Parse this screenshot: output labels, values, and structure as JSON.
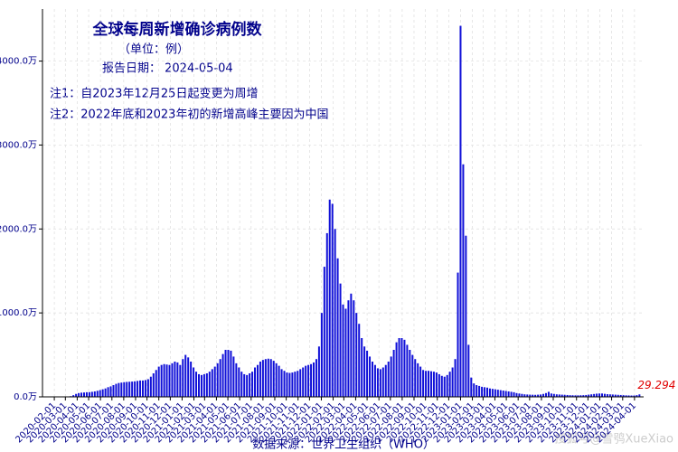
{
  "chart_data": {
    "type": "bar",
    "title": "全球每周新增确诊病例数",
    "subtitle": "（单位：例）",
    "report_date": "报告日期： 2024-05-04",
    "notes": [
      "注1：自2023年12月25日起变更为周增",
      "注2：2022年底和2023年初的新增高峰主要因为中国"
    ],
    "source": "数据来源：世界卫生组织（WHO）",
    "watermark": "搜狐号@雪鸮XueXiao",
    "color": "#1010d8",
    "grid": true,
    "x": [
      "2020-01-05",
      "2020-01-12",
      "2020-01-19",
      "2020-01-26",
      "2020-02-02",
      "2020-02-09",
      "2020-02-16",
      "2020-02-23",
      "2020-03-01",
      "2020-03-08",
      "2020-03-15",
      "2020-03-22",
      "2020-03-29",
      "2020-04-05",
      "2020-04-12",
      "2020-04-19",
      "2020-04-26",
      "2020-05-03",
      "2020-05-10",
      "2020-05-17",
      "2020-05-24",
      "2020-05-31",
      "2020-06-07",
      "2020-06-14",
      "2020-06-21",
      "2020-06-28",
      "2020-07-05",
      "2020-07-12",
      "2020-07-19",
      "2020-07-26",
      "2020-08-02",
      "2020-08-09",
      "2020-08-16",
      "2020-08-23",
      "2020-08-30",
      "2020-09-06",
      "2020-09-13",
      "2020-09-20",
      "2020-09-27",
      "2020-10-04",
      "2020-10-11",
      "2020-10-18",
      "2020-10-25",
      "2020-11-01",
      "2020-11-08",
      "2020-11-15",
      "2020-11-22",
      "2020-11-29",
      "2020-12-06",
      "2020-12-13",
      "2020-12-20",
      "2020-12-27",
      "2021-01-03",
      "2021-01-10",
      "2021-01-17",
      "2021-01-24",
      "2021-01-31",
      "2021-02-07",
      "2021-02-14",
      "2021-02-21",
      "2021-02-28",
      "2021-03-07",
      "2021-03-14",
      "2021-03-21",
      "2021-03-28",
      "2021-04-04",
      "2021-04-11",
      "2021-04-18",
      "2021-04-25",
      "2021-05-02",
      "2021-05-09",
      "2021-05-16",
      "2021-05-23",
      "2021-05-30",
      "2021-06-06",
      "2021-06-13",
      "2021-06-20",
      "2021-06-27",
      "2021-07-04",
      "2021-07-11",
      "2021-07-18",
      "2021-07-25",
      "2021-08-01",
      "2021-08-08",
      "2021-08-15",
      "2021-08-22",
      "2021-08-29",
      "2021-09-05",
      "2021-09-12",
      "2021-09-19",
      "2021-09-26",
      "2021-10-03",
      "2021-10-10",
      "2021-10-17",
      "2021-10-24",
      "2021-10-31",
      "2021-11-07",
      "2021-11-14",
      "2021-11-21",
      "2021-11-28",
      "2021-12-05",
      "2021-12-12",
      "2021-12-19",
      "2021-12-26",
      "2022-01-02",
      "2022-01-09",
      "2022-01-16",
      "2022-01-23",
      "2022-01-30",
      "2022-02-06",
      "2022-02-13",
      "2022-02-20",
      "2022-02-27",
      "2022-03-06",
      "2022-03-13",
      "2022-03-20",
      "2022-03-27",
      "2022-04-03",
      "2022-04-10",
      "2022-04-17",
      "2022-04-24",
      "2022-05-01",
      "2022-05-08",
      "2022-05-15",
      "2022-05-22",
      "2022-05-29",
      "2022-06-05",
      "2022-06-12",
      "2022-06-19",
      "2022-06-26",
      "2022-07-03",
      "2022-07-10",
      "2022-07-17",
      "2022-07-24",
      "2022-07-31",
      "2022-08-07",
      "2022-08-14",
      "2022-08-21",
      "2022-08-28",
      "2022-09-04",
      "2022-09-11",
      "2022-09-18",
      "2022-09-25",
      "2022-10-02",
      "2022-10-09",
      "2022-10-16",
      "2022-10-23",
      "2022-10-30",
      "2022-11-06",
      "2022-11-13",
      "2022-11-20",
      "2022-11-27",
      "2022-12-04",
      "2022-12-11",
      "2022-12-18",
      "2022-12-25",
      "2023-01-01",
      "2023-01-08",
      "2023-01-15",
      "2023-01-22",
      "2023-01-29",
      "2023-02-05",
      "2023-02-12",
      "2023-02-19",
      "2023-02-26",
      "2023-03-05",
      "2023-03-12",
      "2023-03-19",
      "2023-03-26",
      "2023-04-02",
      "2023-04-09",
      "2023-04-16",
      "2023-04-23",
      "2023-04-30",
      "2023-05-07",
      "2023-05-14",
      "2023-05-21",
      "2023-05-28",
      "2023-06-04",
      "2023-06-11",
      "2023-06-18",
      "2023-06-25",
      "2023-07-02",
      "2023-07-09",
      "2023-07-16",
      "2023-07-23",
      "2023-07-30",
      "2023-08-06",
      "2023-08-13",
      "2023-08-20",
      "2023-08-27",
      "2023-09-03",
      "2023-09-10",
      "2023-09-17",
      "2023-09-24",
      "2023-10-01",
      "2023-10-08",
      "2023-10-15",
      "2023-10-22",
      "2023-10-29",
      "2023-11-05",
      "2023-11-12",
      "2023-11-19",
      "2023-11-26",
      "2023-12-03",
      "2023-12-10",
      "2023-12-17",
      "2023-12-24",
      "2023-12-31",
      "2024-01-07",
      "2024-01-14",
      "2024-01-21",
      "2024-01-28",
      "2024-02-04",
      "2024-02-11",
      "2024-02-18",
      "2024-02-25",
      "2024-03-03",
      "2024-03-10",
      "2024-03-17",
      "2024-03-24",
      "2024-03-31",
      "2024-04-07",
      "2024-04-14"
    ],
    "values": [
      0,
      0,
      0.1,
      0.2,
      1.2,
      1.8,
      1.1,
      0.9,
      1.5,
      3,
      8,
      20,
      35,
      45,
      50,
      52,
      55,
      56,
      60,
      65,
      72,
      80,
      90,
      100,
      115,
      125,
      140,
      155,
      165,
      170,
      175,
      178,
      180,
      182,
      185,
      190,
      195,
      195,
      200,
      210,
      240,
      280,
      320,
      360,
      380,
      390,
      385,
      380,
      400,
      420,
      410,
      380,
      450,
      500,
      470,
      420,
      350,
      300,
      270,
      260,
      270,
      280,
      300,
      330,
      360,
      400,
      450,
      510,
      560,
      560,
      550,
      480,
      400,
      350,
      300,
      270,
      260,
      280,
      300,
      350,
      380,
      420,
      440,
      450,
      455,
      450,
      430,
      400,
      370,
      330,
      310,
      290,
      285,
      290,
      300,
      310,
      330,
      350,
      370,
      380,
      390,
      410,
      450,
      600,
      1000,
      1550,
      1950,
      2350,
      2300,
      2000,
      1650,
      1350,
      1100,
      1050,
      1150,
      1230,
      1150,
      1000,
      870,
      700,
      600,
      550,
      480,
      420,
      380,
      340,
      330,
      350,
      380,
      420,
      480,
      560,
      650,
      700,
      700,
      680,
      620,
      560,
      500,
      450,
      400,
      360,
      320,
      310,
      310,
      305,
      300,
      290,
      270,
      250,
      240,
      260,
      300,
      350,
      450,
      1480,
      4420,
      2770,
      1920,
      620,
      230,
      160,
      140,
      130,
      120,
      115,
      110,
      100,
      95,
      90,
      85,
      80,
      75,
      70,
      65,
      60,
      55,
      45,
      40,
      35,
      30,
      28,
      26,
      25,
      24,
      26,
      28,
      35,
      45,
      60,
      40,
      35,
      30,
      28,
      26,
      24,
      22,
      20,
      19,
      18,
      18,
      19,
      20,
      22,
      26,
      30,
      34,
      38,
      40,
      40,
      36,
      32,
      30,
      28,
      26,
      24,
      22,
      20,
      18,
      17,
      16,
      16,
      20,
      29.294
    ],
    "xlim": [
      "2020-01-01",
      "2024-04-25"
    ],
    "xticks": [
      "2020-02-01",
      "2020-03-01",
      "2020-04-01",
      "2020-05-01",
      "2020-06-01",
      "2020-07-01",
      "2020-08-01",
      "2020-09-01",
      "2020-10-01",
      "2020-11-01",
      "2020-12-01",
      "2021-01-01",
      "2021-02-01",
      "2021-03-01",
      "2021-04-01",
      "2021-05-01",
      "2021-06-01",
      "2021-07-01",
      "2021-08-01",
      "2021-09-01",
      "2021-10-01",
      "2021-11-01",
      "2021-12-01",
      "2022-01-01",
      "2022-02-01",
      "2022-03-01",
      "2022-04-01",
      "2022-05-01",
      "2022-06-01",
      "2022-07-01",
      "2022-08-01",
      "2022-09-01",
      "2022-10-01",
      "2022-11-01",
      "2022-12-01",
      "2023-01-01",
      "2023-02-01",
      "2023-03-01",
      "2023-04-01",
      "2023-05-01",
      "2023-06-01",
      "2023-07-01",
      "2023-08-01",
      "2023-09-01",
      "2023-10-01",
      "2023-11-01",
      "2023-12-01",
      "2024-01-01",
      "2024-02-01",
      "2024-03-01",
      "2024-04-01"
    ],
    "ylim": [
      0,
      4620
    ],
    "yticks": [
      {
        "value": 0,
        "label": "0.0万"
      },
      {
        "value": 1000,
        "label": "1000.0万"
      },
      {
        "value": 2000,
        "label": "2000.0万"
      },
      {
        "value": 3000,
        "label": "3000.0万"
      },
      {
        "value": 4000,
        "label": "4000.0万"
      }
    ]
  }
}
